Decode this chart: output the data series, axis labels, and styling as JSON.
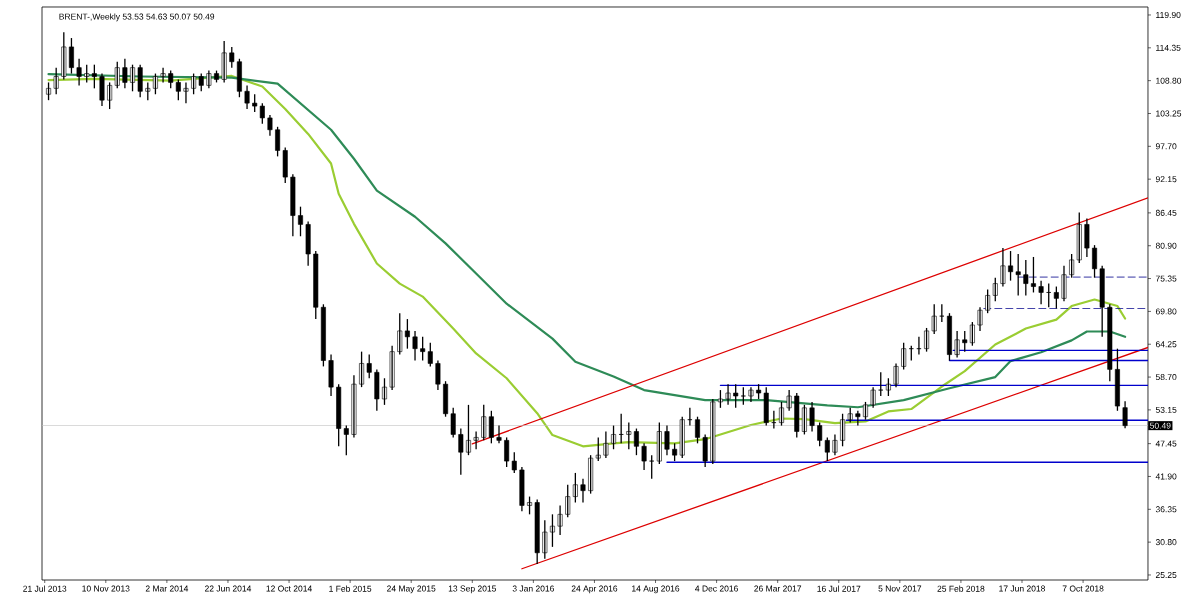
{
  "chart_data": {
    "type": "candlestick",
    "title": "BRENT-,Weekly 53.53 54.63 50.07 50.49",
    "x": [
      "2013-07-28",
      "2013-08-11",
      "2013-08-25",
      "2013-09-08",
      "2013-09-22",
      "2013-10-06",
      "2013-10-20",
      "2013-11-03",
      "2013-11-17",
      "2013-12-01",
      "2013-12-15",
      "2013-12-29",
      "2014-01-12",
      "2014-01-26",
      "2014-02-09",
      "2014-02-23",
      "2014-03-09",
      "2014-03-23",
      "2014-04-06",
      "2014-04-20",
      "2014-05-04",
      "2014-05-18",
      "2014-06-01",
      "2014-06-15",
      "2014-06-29",
      "2014-07-13",
      "2014-07-27",
      "2014-08-10",
      "2014-08-24",
      "2014-09-07",
      "2014-09-21",
      "2014-10-05",
      "2014-10-19",
      "2014-11-02",
      "2014-11-16",
      "2014-11-30",
      "2014-12-14",
      "2014-12-28",
      "2015-01-11",
      "2015-01-25",
      "2015-02-08",
      "2015-02-22",
      "2015-03-08",
      "2015-03-22",
      "2015-04-05",
      "2015-04-19",
      "2015-05-03",
      "2015-05-17",
      "2015-05-31",
      "2015-06-14",
      "2015-06-28",
      "2015-07-12",
      "2015-07-26",
      "2015-08-09",
      "2015-08-23",
      "2015-09-06",
      "2015-09-20",
      "2015-10-04",
      "2015-10-18",
      "2015-11-01",
      "2015-11-15",
      "2015-11-29",
      "2015-12-13",
      "2015-12-27",
      "2016-01-10",
      "2016-01-24",
      "2016-02-07",
      "2016-02-21",
      "2016-03-06",
      "2016-03-20",
      "2016-04-03",
      "2016-04-17",
      "2016-05-01",
      "2016-05-15",
      "2016-05-29",
      "2016-06-12",
      "2016-06-26",
      "2016-07-10",
      "2016-07-24",
      "2016-08-07",
      "2016-08-21",
      "2016-09-04",
      "2016-09-18",
      "2016-10-02",
      "2016-10-16",
      "2016-10-30",
      "2016-11-13",
      "2016-11-27",
      "2016-12-11",
      "2016-12-25",
      "2017-01-08",
      "2017-01-22",
      "2017-02-05",
      "2017-02-19",
      "2017-03-05",
      "2017-03-19",
      "2017-04-02",
      "2017-04-16",
      "2017-04-30",
      "2017-05-14",
      "2017-05-28",
      "2017-06-11",
      "2017-06-25",
      "2017-07-09",
      "2017-07-23",
      "2017-08-06",
      "2017-08-20",
      "2017-09-03",
      "2017-09-17",
      "2017-10-01",
      "2017-10-15",
      "2017-10-29",
      "2017-11-12",
      "2017-11-26",
      "2017-12-10",
      "2017-12-24",
      "2018-01-07",
      "2018-01-21",
      "2018-02-04",
      "2018-02-18",
      "2018-03-04",
      "2018-03-18",
      "2018-04-01",
      "2018-04-15",
      "2018-04-29",
      "2018-05-13",
      "2018-05-27",
      "2018-06-10",
      "2018-06-24",
      "2018-07-08",
      "2018-07-22",
      "2018-08-05",
      "2018-08-19",
      "2018-09-02",
      "2018-09-16",
      "2018-09-30",
      "2018-10-14",
      "2018-10-28",
      "2018-11-11",
      "2018-11-25",
      "2018-12-09",
      "2018-12-23"
    ],
    "ohlc": [
      [
        106.5,
        108.5,
        105.5,
        107.5
      ],
      [
        107.5,
        111.0,
        106.5,
        109.5
      ],
      [
        109.5,
        117.0,
        109.0,
        114.5
      ],
      [
        114.5,
        116.0,
        110.0,
        111.0
      ],
      [
        111.0,
        112.5,
        108.0,
        109.5
      ],
      [
        109.5,
        111.5,
        108.5,
        110.0
      ],
      [
        110.0,
        111.5,
        107.5,
        109.5
      ],
      [
        109.5,
        110.0,
        104.5,
        105.5
      ],
      [
        105.5,
        108.5,
        104.0,
        108.0
      ],
      [
        108.0,
        112.0,
        107.5,
        111.0
      ],
      [
        111.0,
        112.5,
        107.5,
        108.5
      ],
      [
        108.5,
        111.5,
        107.0,
        111.0
      ],
      [
        111.0,
        111.5,
        106.0,
        107.0
      ],
      [
        107.0,
        108.5,
        105.5,
        107.5
      ],
      [
        107.5,
        110.0,
        106.5,
        109.5
      ],
      [
        109.5,
        111.0,
        108.5,
        110.0
      ],
      [
        110.0,
        110.5,
        107.5,
        108.5
      ],
      [
        108.5,
        109.0,
        105.5,
        107.0
      ],
      [
        107.0,
        108.5,
        105.0,
        107.5
      ],
      [
        107.5,
        110.0,
        106.5,
        109.5
      ],
      [
        109.5,
        110.0,
        107.0,
        108.0
      ],
      [
        108.0,
        110.5,
        107.5,
        110.0
      ],
      [
        110.0,
        110.5,
        108.5,
        109.0
      ],
      [
        109.0,
        115.5,
        108.5,
        113.5
      ],
      [
        113.5,
        114.5,
        111.0,
        112.0
      ],
      [
        112.0,
        112.5,
        106.0,
        107.0
      ],
      [
        107.0,
        108.0,
        104.0,
        105.0
      ],
      [
        105.0,
        106.5,
        103.5,
        104.5
      ],
      [
        104.5,
        105.0,
        101.5,
        102.5
      ],
      [
        102.5,
        103.0,
        99.5,
        100.5
      ],
      [
        100.5,
        101.0,
        96.0,
        97.0
      ],
      [
        97.0,
        97.5,
        91.5,
        92.5
      ],
      [
        92.5,
        93.0,
        82.5,
        86.0
      ],
      [
        86.0,
        87.5,
        82.5,
        84.5
      ],
      [
        84.5,
        85.0,
        77.5,
        79.5
      ],
      [
        79.5,
        80.0,
        68.5,
        70.5
      ],
      [
        70.5,
        71.0,
        60.5,
        61.5
      ],
      [
        61.5,
        62.5,
        55.5,
        57.0
      ],
      [
        57.0,
        57.5,
        47.0,
        50.0
      ],
      [
        50.0,
        50.5,
        45.5,
        49.0
      ],
      [
        49.0,
        59.0,
        48.5,
        57.5
      ],
      [
        57.5,
        63.0,
        57.0,
        61.0
      ],
      [
        61.0,
        62.5,
        58.5,
        59.5
      ],
      [
        59.5,
        60.0,
        53.0,
        55.0
      ],
      [
        55.0,
        58.5,
        54.0,
        57.0
      ],
      [
        57.0,
        64.0,
        56.5,
        63.0
      ],
      [
        63.0,
        69.5,
        62.5,
        66.5
      ],
      [
        66.5,
        68.5,
        63.5,
        65.5
      ],
      [
        65.5,
        66.5,
        61.5,
        63.5
      ],
      [
        63.5,
        65.5,
        61.5,
        63.0
      ],
      [
        63.0,
        64.5,
        60.5,
        61.0
      ],
      [
        61.0,
        61.5,
        56.5,
        57.5
      ],
      [
        57.5,
        58.0,
        52.0,
        52.5
      ],
      [
        52.5,
        53.5,
        48.5,
        49.0
      ],
      [
        49.0,
        50.0,
        42.2,
        46.0
      ],
      [
        46.0,
        54.0,
        45.5,
        48.0
      ],
      [
        48.0,
        49.5,
        46.5,
        48.5
      ],
      [
        48.5,
        54.0,
        48.0,
        52.0
      ],
      [
        52.0,
        53.0,
        47.5,
        48.5
      ],
      [
        48.5,
        50.5,
        47.5,
        48.0
      ],
      [
        48.0,
        48.5,
        43.5,
        44.5
      ],
      [
        44.5,
        46.0,
        42.5,
        43.0
      ],
      [
        43.0,
        43.5,
        36.0,
        37.0
      ],
      [
        37.0,
        38.5,
        35.5,
        37.5
      ],
      [
        37.5,
        38.0,
        27.1,
        29.0
      ],
      [
        29.0,
        34.5,
        28.0,
        32.5
      ],
      [
        32.5,
        35.5,
        30.0,
        33.5
      ],
      [
        33.5,
        37.0,
        32.0,
        35.5
      ],
      [
        35.5,
        40.5,
        35.0,
        38.5
      ],
      [
        38.5,
        42.5,
        37.5,
        40.5
      ],
      [
        40.5,
        41.5,
        37.5,
        39.5
      ],
      [
        39.5,
        45.5,
        39.0,
        45.0
      ],
      [
        45.0,
        48.5,
        44.5,
        45.5
      ],
      [
        45.5,
        49.5,
        45.0,
        47.5
      ],
      [
        47.5,
        50.5,
        46.5,
        49.0
      ],
      [
        49.0,
        52.5,
        47.5,
        49.0
      ],
      [
        49.0,
        51.0,
        46.5,
        49.5
      ],
      [
        49.5,
        50.0,
        45.5,
        47.0
      ],
      [
        47.0,
        47.5,
        43.0,
        44.5
      ],
      [
        44.5,
        45.5,
        41.5,
        44.5
      ],
      [
        44.5,
        51.0,
        44.0,
        49.5
      ],
      [
        49.5,
        50.5,
        45.5,
        46.5
      ],
      [
        46.5,
        47.5,
        44.5,
        45.5
      ],
      [
        45.5,
        52.0,
        45.0,
        51.5
      ],
      [
        51.5,
        53.5,
        50.5,
        51.5
      ],
      [
        51.5,
        52.0,
        47.5,
        48.5
      ],
      [
        48.5,
        49.0,
        43.5,
        44.5
      ],
      [
        44.5,
        55.0,
        44.0,
        54.5
      ],
      [
        54.5,
        56.5,
        53.5,
        55.0
      ],
      [
        55.0,
        57.5,
        54.0,
        56.0
      ],
      [
        56.0,
        57.5,
        53.5,
        55.5
      ],
      [
        55.5,
        57.0,
        54.0,
        55.5
      ],
      [
        55.5,
        57.0,
        54.5,
        56.5
      ],
      [
        56.5,
        57.5,
        55.0,
        56.0
      ],
      [
        56.0,
        57.0,
        50.5,
        51.0
      ],
      [
        51.0,
        53.0,
        50.0,
        51.0
      ],
      [
        51.0,
        54.5,
        50.5,
        53.5
      ],
      [
        53.5,
        56.5,
        53.0,
        55.5
      ],
      [
        55.5,
        56.0,
        48.5,
        49.5
      ],
      [
        49.5,
        54.0,
        49.0,
        53.5
      ],
      [
        53.5,
        54.5,
        49.5,
        50.5
      ],
      [
        50.5,
        51.0,
        47.0,
        48.0
      ],
      [
        48.0,
        48.5,
        44.5,
        46.0
      ],
      [
        46.0,
        49.0,
        45.5,
        48.0
      ],
      [
        48.0,
        52.5,
        47.0,
        51.5
      ],
      [
        51.5,
        53.5,
        51.0,
        52.5
      ],
      [
        52.5,
        53.0,
        50.5,
        52.0
      ],
      [
        52.0,
        54.5,
        51.5,
        54.0
      ],
      [
        54.0,
        57.0,
        53.5,
        56.5
      ],
      [
        56.5,
        59.5,
        55.5,
        56.5
      ],
      [
        56.5,
        58.5,
        55.5,
        57.5
      ],
      [
        57.5,
        61.0,
        57.0,
        60.5
      ],
      [
        60.5,
        64.5,
        60.0,
        63.5
      ],
      [
        63.5,
        64.0,
        61.5,
        63.5
      ],
      [
        63.5,
        65.5,
        62.5,
        63.5
      ],
      [
        63.5,
        67.0,
        63.0,
        66.5
      ],
      [
        66.5,
        71.0,
        66.0,
        69.0
      ],
      [
        69.0,
        71.0,
        68.0,
        69.0
      ],
      [
        69.0,
        69.5,
        61.5,
        62.5
      ],
      [
        62.5,
        66.5,
        62.0,
        65.0
      ],
      [
        65.0,
        66.5,
        63.0,
        64.5
      ],
      [
        64.5,
        68.0,
        64.0,
        67.5
      ],
      [
        67.5,
        70.5,
        66.5,
        70.0
      ],
      [
        70.0,
        73.5,
        69.5,
        72.5
      ],
      [
        72.5,
        75.5,
        71.5,
        74.5
      ],
      [
        74.5,
        80.5,
        74.0,
        77.5
      ],
      [
        77.5,
        80.0,
        75.0,
        76.5
      ],
      [
        76.5,
        79.5,
        72.5,
        76.0
      ],
      [
        76.0,
        78.5,
        72.5,
        74.5
      ],
      [
        74.5,
        79.0,
        73.0,
        74.0
      ],
      [
        74.0,
        75.0,
        71.0,
        73.0
      ],
      [
        73.0,
        74.5,
        70.5,
        73.0
      ],
      [
        73.0,
        74.0,
        70.3,
        72.0
      ],
      [
        72.0,
        77.5,
        71.5,
        76.0
      ],
      [
        76.0,
        79.5,
        75.5,
        78.5
      ],
      [
        78.5,
        86.5,
        78.0,
        84.5
      ],
      [
        84.5,
        85.5,
        79.0,
        80.5
      ],
      [
        80.5,
        81.0,
        75.5,
        77.0
      ],
      [
        77.0,
        77.5,
        65.5,
        70.5
      ],
      [
        70.5,
        71.0,
        58.0,
        60.0
      ],
      [
        60.0,
        63.5,
        53.0,
        53.8
      ],
      [
        53.53,
        54.63,
        50.07,
        50.49
      ]
    ],
    "series": [
      {
        "type": "line",
        "color": "#9acd32",
        "x": [
          "2013-07-28",
          "2013-10-20",
          "2014-03-09",
          "2014-06-29",
          "2014-08-24",
          "2014-10-05",
          "2014-11-16",
          "2014-12-28",
          "2015-01-11",
          "2015-02-08",
          "2015-03-22",
          "2015-05-03",
          "2015-06-14",
          "2015-08-09",
          "2015-09-20",
          "2015-11-15",
          "2016-01-10",
          "2016-02-07",
          "2016-04-03",
          "2016-05-29",
          "2016-06-26",
          "2016-09-18",
          "2016-11-13",
          "2017-02-05",
          "2017-04-02",
          "2017-05-14",
          "2017-07-09",
          "2017-09-03",
          "2017-10-15",
          "2017-11-26",
          "2018-01-21",
          "2018-03-04",
          "2018-04-29",
          "2018-06-24",
          "2018-08-19",
          "2018-09-16",
          "2018-10-28",
          "2018-12-09",
          "2018-12-23"
        ],
        "values": [
          108.9,
          109.1,
          108.8,
          109.6,
          107.8,
          104.0,
          99.8,
          94.8,
          89.7,
          84.6,
          77.9,
          74.5,
          72.3,
          66.9,
          62.7,
          58.5,
          52.6,
          48.9,
          47.0,
          47.5,
          47.7,
          47.5,
          48.2,
          50.6,
          51.7,
          51.6,
          50.9,
          51.2,
          52.9,
          53.3,
          57.1,
          59.7,
          64.2,
          66.9,
          68.4,
          70.7,
          71.8,
          70.7,
          68.6
        ]
      },
      {
        "type": "line",
        "color": "#2e8b57",
        "x": [
          "2013-07-28",
          "2014-01-12",
          "2014-06-29",
          "2014-09-21",
          "2014-12-28",
          "2015-02-08",
          "2015-03-22",
          "2015-05-31",
          "2015-07-26",
          "2015-09-20",
          "2015-11-15",
          "2016-02-07",
          "2016-03-20",
          "2016-05-29",
          "2016-07-24",
          "2016-11-13",
          "2017-03-05",
          "2017-06-25",
          "2017-08-20",
          "2017-11-12",
          "2018-02-04",
          "2018-04-29",
          "2018-05-27",
          "2018-07-22",
          "2018-09-16",
          "2018-10-14",
          "2018-11-25",
          "2018-12-23"
        ],
        "values": [
          109.9,
          109.5,
          109.3,
          108.3,
          100.5,
          95.6,
          90.2,
          85.8,
          81.3,
          76.2,
          71.1,
          65.2,
          61.3,
          58.8,
          56.5,
          54.8,
          54.8,
          53.9,
          53.6,
          54.8,
          56.8,
          58.7,
          61.4,
          62.9,
          64.9,
          66.4,
          66.4,
          65.5
        ]
      },
      {
        "type": "line",
        "color": "#dd0000",
        "x": [
          "2015-09-13",
          "2019-02-03"
        ],
        "values": [
          47.4,
          89.0
        ]
      },
      {
        "type": "line",
        "color": "#dd0000",
        "x": [
          "2015-12-13",
          "2019-02-03"
        ],
        "values": [
          26.3,
          63.7
        ]
      },
      {
        "type": "line",
        "color": "#0000cc",
        "x": [
          "2016-12-11",
          "2019-02-03"
        ],
        "values": [
          57.3,
          57.3
        ]
      },
      {
        "type": "line",
        "color": "#0000cc",
        "x": [
          "2016-09-04",
          "2019-02-03"
        ],
        "values": [
          44.3,
          44.3
        ]
      },
      {
        "type": "line",
        "color": "#0000cc",
        "x": [
          "2017-07-30",
          "2019-02-03"
        ],
        "values": [
          51.4,
          51.4
        ]
      },
      {
        "type": "line",
        "color": "#0000cc",
        "x": [
          "2018-02-11",
          "2019-02-03"
        ],
        "values": [
          63.2,
          63.2
        ]
      },
      {
        "type": "line",
        "color": "#0000cc",
        "x": [
          "2018-02-04",
          "2019-02-03"
        ],
        "values": [
          61.5,
          61.5
        ]
      },
      {
        "type": "line",
        "color": "#00008b",
        "line_style": "dashed",
        "x": [
          "2018-06-10",
          "2019-02-03"
        ],
        "values": [
          75.6,
          75.6
        ]
      },
      {
        "type": "line",
        "color": "#00008b",
        "line_style": "dashed",
        "x": [
          "2018-04-08",
          "2019-02-03"
        ],
        "values": [
          70.3,
          70.3
        ]
      }
    ],
    "ref_lines": [
      {
        "axis": "y",
        "value": 50.49,
        "label": "50.49",
        "color": "#c0c0c0"
      }
    ],
    "xlim": [
      "2013-07-16",
      "2019-02-03"
    ],
    "xticks": [
      {
        "value": "2013-07-21",
        "label": "21 Jul 2013"
      },
      {
        "value": "2013-11-10",
        "label": "10 Nov 2013"
      },
      {
        "value": "2014-03-02",
        "label": "2 Mar 2014"
      },
      {
        "value": "2014-06-22",
        "label": "22 Jun 2014"
      },
      {
        "value": "2014-10-12",
        "label": "12 Oct 2014"
      },
      {
        "value": "2015-02-01",
        "label": "1 Feb 2015"
      },
      {
        "value": "2015-05-24",
        "label": "24 May 2015"
      },
      {
        "value": "2015-09-13",
        "label": "13 Sep 2015"
      },
      {
        "value": "2016-01-03",
        "label": "3 Jan 2016"
      },
      {
        "value": "2016-04-24",
        "label": "24 Apr 2016"
      },
      {
        "value": "2016-08-14",
        "label": "14 Aug 2016"
      },
      {
        "value": "2016-12-04",
        "label": "4 Dec 2016"
      },
      {
        "value": "2017-03-26",
        "label": "26 Mar 2017"
      },
      {
        "value": "2017-07-16",
        "label": "16 Jul 2017"
      },
      {
        "value": "2017-11-05",
        "label": "5 Nov 2017"
      },
      {
        "value": "2018-02-25",
        "label": "25 Feb 2018"
      },
      {
        "value": "2018-06-17",
        "label": "17 Jun 2018"
      },
      {
        "value": "2018-10-07",
        "label": "7 Oct 2018"
      }
    ],
    "ylim": [
      24.4,
      121.25
    ],
    "yticks": [
      25.25,
      {
        "value": 30.8,
        "label": "30.80"
      },
      36.35,
      {
        "value": 41.9,
        "label": "41.90"
      },
      47.45,
      53.15,
      {
        "value": 58.7,
        "label": "58.70"
      },
      64.25,
      {
        "value": 69.8,
        "label": "69.80"
      },
      75.35,
      {
        "value": 80.9,
        "label": "80.90"
      },
      86.45,
      92.15,
      {
        "value": 97.7,
        "label": "97.70"
      },
      103.25,
      {
        "value": 108.8,
        "label": "108.80"
      },
      114.35,
      {
        "value": 119.9,
        "label": "119.90"
      }
    ]
  }
}
